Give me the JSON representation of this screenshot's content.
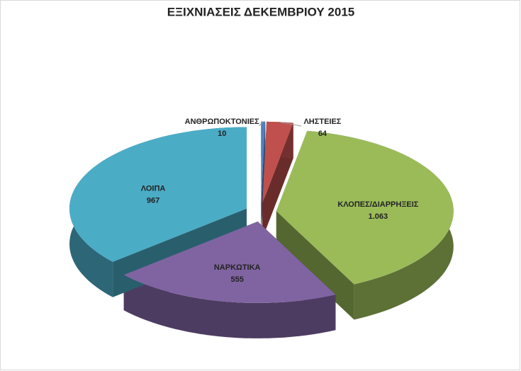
{
  "chart_data": {
    "type": "pie3d",
    "title": "ΕΞΙΧΝΙΑΣΕΙΣ ΔΕΚΕΜΒΡΙΟΥ 2015",
    "categories": [
      "ΑΝΘΡΩΠΟΚΤΟΝΙΕΣ",
      "ΛΗΣΤΕΙΕΣ",
      "ΚΛΟΠΕΣ/ΔΙΑΡΡΗΞΕΙΣ",
      "ΝΑΡΚΩΤΙΚΑ",
      "ΛΟΙΠΑ"
    ],
    "values": [
      10,
      64,
      1063,
      555,
      967
    ],
    "value_labels": [
      "10",
      "64",
      "1.063",
      "555",
      "967"
    ],
    "colors": [
      "#4f81bd",
      "#c0504d",
      "#9bbb59",
      "#8064a2",
      "#4bacc6"
    ]
  }
}
